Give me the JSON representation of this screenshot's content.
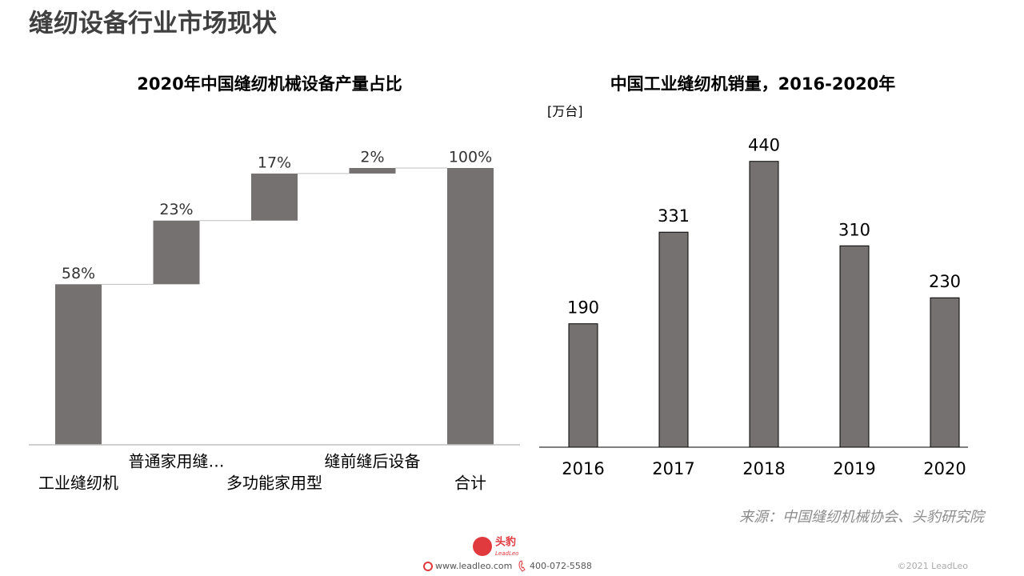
{
  "header": {
    "title": "缝纫设备行业市场现状"
  },
  "chart_data": [
    {
      "type": "waterfall",
      "title": "2020年中国缝纫机械设备产量占比",
      "categories": [
        "工业缝纫机",
        "普通家用缝…",
        "多功能家用型",
        "缝前缝后设备",
        "合计"
      ],
      "values": [
        58,
        23,
        17,
        2,
        100
      ],
      "value_labels": [
        "58%",
        "23%",
        "17%",
        "2%",
        "100%"
      ],
      "last_is_total": true,
      "color": "#767171",
      "ylim": [
        0,
        100
      ]
    },
    {
      "type": "bar",
      "title": "中国工业缝纫机销量，2016-2020年",
      "unit": "[万台]",
      "categories": [
        "2016",
        "2017",
        "2018",
        "2019",
        "2020"
      ],
      "values": [
        190,
        331,
        440,
        310,
        230
      ],
      "color": "#767171",
      "ylim": [
        0,
        500
      ]
    }
  ],
  "source": "来源：中国缝纫机械协会、头豹研究院",
  "footer": {
    "logo_cn": "头豹",
    "logo_en": "LeadLeo",
    "website": "www.leadleo.com",
    "phone": "400-072-5588",
    "copyright": "©2021 LeadLeo"
  }
}
